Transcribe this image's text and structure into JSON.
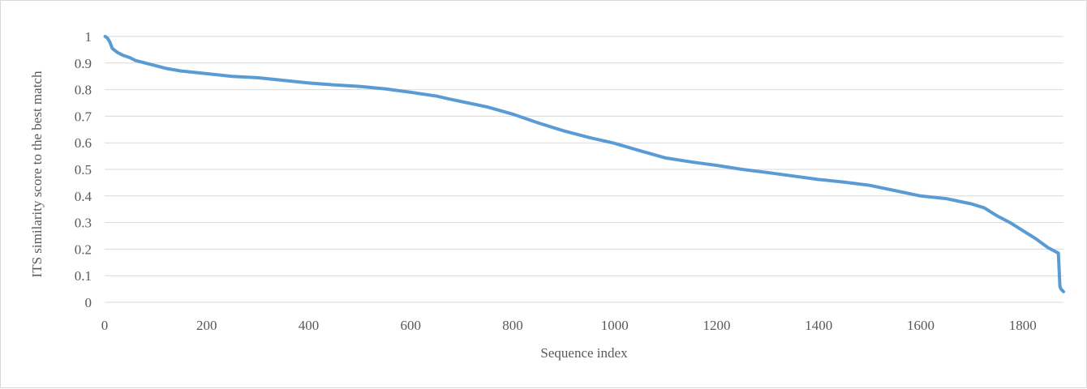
{
  "chart_data": {
    "type": "line",
    "title": "",
    "xlabel": "Sequence index",
    "ylabel": "ITS similarity score to the best match",
    "xlim": [
      0,
      1880
    ],
    "ylim": [
      0,
      1
    ],
    "x_ticks": [
      0,
      200,
      400,
      600,
      800,
      1000,
      1200,
      1400,
      1600,
      1800
    ],
    "x_tick_labels": [
      "0",
      "200",
      "400",
      "600",
      "800",
      "1000",
      "1200",
      "1400",
      "1600",
      "1800"
    ],
    "y_ticks": [
      0,
      0.1,
      0.2,
      0.3,
      0.4,
      0.5,
      0.6,
      0.7,
      0.8,
      0.9,
      1
    ],
    "y_tick_labels": [
      "0",
      "0.1",
      "0.2",
      "0.3",
      "0.4",
      "0.5",
      "0.6",
      "0.7",
      "0.8",
      "0.9",
      "1"
    ],
    "grid": "horizontal",
    "legend": "none",
    "series": [
      {
        "color": "#5b9bd5",
        "x": [
          1,
          5,
          10,
          15,
          25,
          35,
          50,
          60,
          80,
          100,
          120,
          150,
          200,
          250,
          300,
          350,
          400,
          450,
          500,
          550,
          600,
          650,
          675,
          700,
          750,
          800,
          850,
          900,
          950,
          1000,
          1050,
          1100,
          1150,
          1200,
          1250,
          1300,
          1350,
          1400,
          1450,
          1500,
          1550,
          1600,
          1625,
          1650,
          1675,
          1700,
          1725,
          1750,
          1775,
          1800,
          1825,
          1850,
          1870,
          1873,
          1875,
          1880
        ],
        "y": [
          1.0,
          0.995,
          0.98,
          0.955,
          0.94,
          0.93,
          0.92,
          0.91,
          0.9,
          0.89,
          0.88,
          0.87,
          0.86,
          0.85,
          0.845,
          0.835,
          0.825,
          0.818,
          0.812,
          0.803,
          0.79,
          0.776,
          0.765,
          0.755,
          0.735,
          0.708,
          0.675,
          0.645,
          0.62,
          0.598,
          0.57,
          0.543,
          0.528,
          0.515,
          0.5,
          0.488,
          0.475,
          0.462,
          0.452,
          0.44,
          0.42,
          0.4,
          0.395,
          0.39,
          0.38,
          0.37,
          0.355,
          0.325,
          0.3,
          0.27,
          0.24,
          0.205,
          0.185,
          0.06,
          0.05,
          0.04
        ]
      }
    ]
  }
}
